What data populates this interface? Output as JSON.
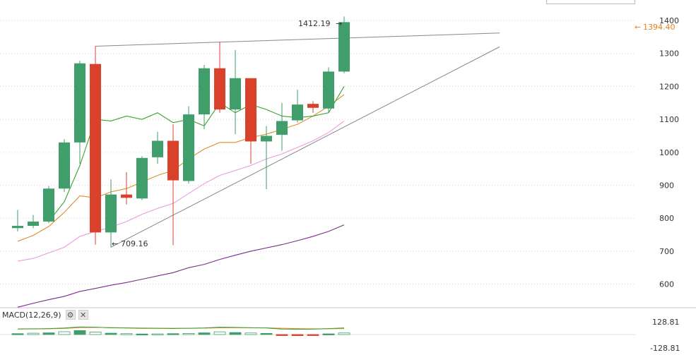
{
  "chart_data": {
    "type": "candlestick",
    "y_ticks": [
      "600",
      "700",
      "800",
      "900",
      "1000",
      "1100",
      "1200",
      "1300",
      "1400"
    ],
    "ylim": [
      535,
      1430
    ],
    "last_price_label": "1394.40",
    "high_label": "1412.19",
    "low_label": "709.16",
    "candles": [
      {
        "o": 770,
        "h": 825,
        "l": 760,
        "c": 777
      },
      {
        "o": 777,
        "h": 810,
        "l": 770,
        "c": 790
      },
      {
        "o": 790,
        "h": 898,
        "l": 785,
        "c": 890
      },
      {
        "o": 890,
        "h": 1040,
        "l": 880,
        "c": 1030
      },
      {
        "o": 1030,
        "h": 1278,
        "l": 965,
        "c": 1270
      },
      {
        "o": 1268,
        "h": 1322,
        "l": 720,
        "c": 757
      },
      {
        "o": 757,
        "h": 918,
        "l": 712,
        "c": 872
      },
      {
        "o": 872,
        "h": 940,
        "l": 842,
        "c": 862
      },
      {
        "o": 860,
        "h": 988,
        "l": 855,
        "c": 983
      },
      {
        "o": 985,
        "h": 1062,
        "l": 965,
        "c": 1035
      },
      {
        "o": 1035,
        "h": 1085,
        "l": 718,
        "c": 915
      },
      {
        "o": 913,
        "h": 1140,
        "l": 905,
        "c": 1115
      },
      {
        "o": 1115,
        "h": 1265,
        "l": 1070,
        "c": 1255
      },
      {
        "o": 1255,
        "h": 1335,
        "l": 1120,
        "c": 1130
      },
      {
        "o": 1130,
        "h": 1310,
        "l": 1055,
        "c": 1225
      },
      {
        "o": 1225,
        "h": 1225,
        "l": 965,
        "c": 1033
      },
      {
        "o": 1033,
        "h": 1080,
        "l": 888,
        "c": 1050
      },
      {
        "o": 1053,
        "h": 1150,
        "l": 1005,
        "c": 1095
      },
      {
        "o": 1097,
        "h": 1190,
        "l": 1090,
        "c": 1145
      },
      {
        "o": 1147,
        "h": 1155,
        "l": 1120,
        "c": 1135
      },
      {
        "o": 1133,
        "h": 1258,
        "l": 1120,
        "c": 1245
      },
      {
        "o": 1245,
        "h": 1412,
        "l": 1240,
        "c": 1395
      }
    ],
    "ma_short": [
      null,
      null,
      790,
      850,
      960,
      1100,
      1095,
      1110,
      1100,
      1120,
      1090,
      1100,
      1080,
      1150,
      1120,
      1145,
      1130,
      1110,
      1105,
      1110,
      1120,
      1200
    ],
    "ma_mid": [
      730,
      748,
      775,
      818,
      868,
      862,
      880,
      890,
      910,
      930,
      945,
      980,
      1010,
      1030,
      1030,
      1045,
      1055,
      1070,
      1085,
      1110,
      1140,
      1175
    ],
    "ma_long": [
      670,
      678,
      695,
      712,
      745,
      760,
      773,
      790,
      812,
      830,
      845,
      875,
      905,
      930,
      945,
      960,
      980,
      995,
      1015,
      1035,
      1060,
      1095
    ],
    "ma_longest": [
      530,
      542,
      553,
      563,
      578,
      587,
      597,
      605,
      615,
      625,
      635,
      650,
      660,
      675,
      688,
      700,
      710,
      720,
      732,
      745,
      760,
      780
    ],
    "trendlines": [
      {
        "x1": 5,
        "y1": 1322,
        "x2": 31,
        "y2": 1362
      },
      {
        "x1": 6,
        "y1": 712,
        "x2": 31,
        "y2": 1320
      }
    ],
    "macd": {
      "title": "MACD(12,26,9)",
      "max_label": "128.81",
      "min_label": "-128.81",
      "hist": [
        8,
        12,
        15,
        25,
        35,
        22,
        12,
        8,
        5,
        6,
        8,
        10,
        15,
        24,
        18,
        14,
        10,
        -8,
        -10,
        -8,
        6,
        14
      ],
      "macd_line": [
        25,
        26,
        30,
        40,
        60,
        55,
        44,
        40,
        35,
        34,
        32,
        36,
        42,
        55,
        52,
        46,
        40,
        22,
        18,
        20,
        30,
        42
      ],
      "signal_line": [
        22,
        23,
        26,
        33,
        48,
        52,
        48,
        44,
        40,
        38,
        36,
        35,
        38,
        44,
        46,
        46,
        44,
        36,
        30,
        26,
        26,
        30
      ]
    },
    "colors": {
      "up": "#3f9e6a",
      "down": "#d9412b",
      "ma_short": "#39a12f",
      "ma_mid": "#e08e2b",
      "ma_long": "#e89ce0",
      "ma_longest": "#7d2b8e",
      "trend": "#888888",
      "last_price": "#e67e22"
    }
  },
  "macd_buttons": {
    "settings_icon": "⚙",
    "close_icon": "✕"
  }
}
